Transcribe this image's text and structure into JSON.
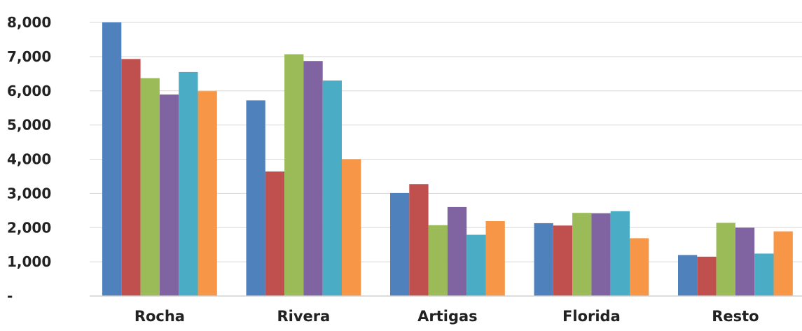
{
  "chart_data": {
    "type": "bar",
    "title": "",
    "xlabel": "",
    "ylabel": "",
    "categories": [
      "Rocha",
      "Rivera",
      "Artigas",
      "Florida",
      "Resto"
    ],
    "series": [
      {
        "color": "#4f81bd",
        "values": [
          8000,
          5720,
          3010,
          2130,
          1200
        ]
      },
      {
        "color": "#c0504d",
        "values": [
          6930,
          3640,
          3270,
          2060,
          1150
        ]
      },
      {
        "color": "#9bbb59",
        "values": [
          6370,
          7070,
          2070,
          2430,
          2140
        ]
      },
      {
        "color": "#8064a2",
        "values": [
          5890,
          6870,
          2600,
          2420,
          2000
        ]
      },
      {
        "color": "#4bacc6",
        "values": [
          6550,
          6300,
          1790,
          2480,
          1240
        ]
      },
      {
        "color": "#f79646",
        "values": [
          5990,
          4000,
          2190,
          1690,
          1890
        ]
      }
    ],
    "ylim": [
      0,
      8000
    ],
    "yticks": [
      0,
      1000,
      2000,
      3000,
      4000,
      5000,
      6000,
      7000,
      8000
    ],
    "ytick_labels": [
      "-",
      "1,000",
      "2,000",
      "3,000",
      "4,000",
      "5,000",
      "6,000",
      "7,000",
      "8,000"
    ],
    "grid": true,
    "legend": "none"
  }
}
